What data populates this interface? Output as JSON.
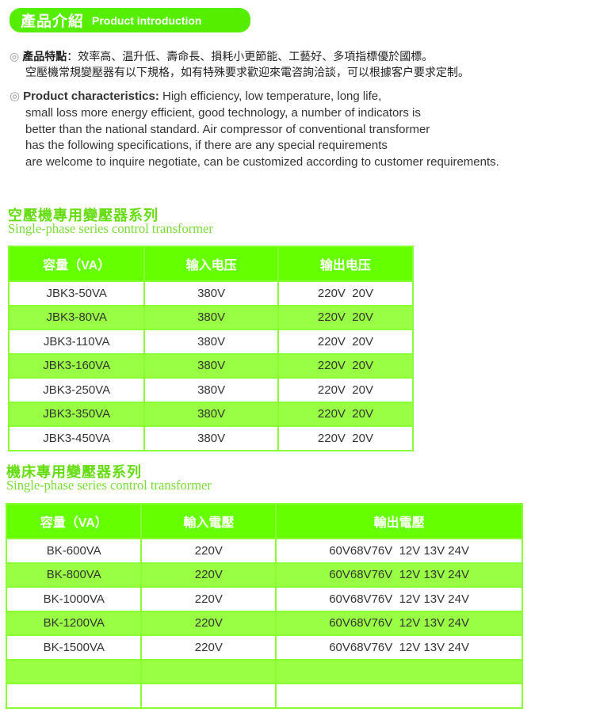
{
  "banner": {
    "zh": "產品介紹",
    "en": "Product introduction"
  },
  "intro_cn": {
    "label": "產品特點",
    "line1": "：效率高、温升低、壽命長、損耗小更節能、工藝好、多項指標優於國標。",
    "line2": "空壓機常規變壓器有以下規格，如有特殊要求歡迎來電咨詢洽談，可以根據客户要求定制。"
  },
  "intro_en": {
    "label": "Product characteristics:",
    "lines": [
      " High efficiency, low temperature, long life,",
      "small loss more energy efficient, good technology, a number of indicators is",
      "better than the national standard. Air compressor of conventional transformer",
      "has the following specifications, if there are any special requirements",
      "are welcome to inquire negotiate, can be customized according to customer requirements."
    ]
  },
  "colors": {
    "accent": "#66ff00",
    "alt_row": "#99ff44",
    "title": "#66dd11"
  },
  "section1": {
    "title": "空壓機專用變壓器系列",
    "subtitle": "Single-phase series control transformer",
    "headers": [
      "容量（VA）",
      "输入电压",
      "输出电压"
    ],
    "rows": [
      [
        "JBK3-50VA",
        "380V",
        "220V  20V"
      ],
      [
        "JBK3-80VA",
        "380V",
        "220V  20V"
      ],
      [
        "JBK3-110VA",
        "380V",
        "220V  20V"
      ],
      [
        "JBK3-160VA",
        "380V",
        "220V  20V"
      ],
      [
        "JBK3-250VA",
        "380V",
        "220V  20V"
      ],
      [
        "JBK3-350VA",
        "380V",
        "220V  20V"
      ],
      [
        "JBK3-450VA",
        "380V",
        "220V  20V"
      ]
    ]
  },
  "section2": {
    "title": "機床專用變壓器系列",
    "subtitle": "Single-phase series control transformer",
    "headers": [
      "容量（VA）",
      "輸入電壓",
      "輸出電壓"
    ],
    "rows": [
      [
        "BK-600VA",
        "220V",
        "60V68V76V  12V 13V 24V"
      ],
      [
        "BK-800VA",
        "220V",
        "60V68V76V  12V 13V 24V"
      ],
      [
        "BK-1000VA",
        "220V",
        "60V68V76V  12V 13V 24V"
      ],
      [
        "BK-1200VA",
        "220V",
        "60V68V76V  12V 13V 24V"
      ],
      [
        "BK-1500VA",
        "220V",
        "60V68V76V  12V 13V 24V"
      ],
      [
        "",
        "",
        ""
      ],
      [
        "",
        "",
        ""
      ]
    ]
  }
}
